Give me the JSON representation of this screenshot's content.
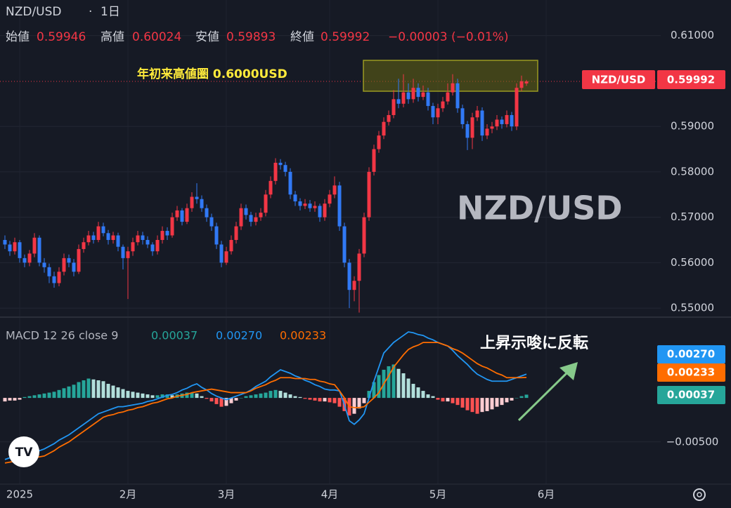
{
  "header": {
    "symbol": "NZD/USD",
    "interval": "1日",
    "open_label": "始値",
    "high_label": "高値",
    "low_label": "安値",
    "close_label": "終値",
    "change": "−0.00003 (−0.01%)"
  },
  "chart_data": [
    {
      "type": "candlestick",
      "title": "NZD/USD",
      "annotation": "年初来高値圏 0.6000USD",
      "price_tag": "NZD/USD",
      "up_color": "#f23645",
      "down_color": "#3179f5",
      "grid": true,
      "ylim": [
        0.54862,
        0.61784
      ],
      "yticks": [
        {
          "value": 0.61,
          "label": "0.61000"
        },
        {
          "value": 0.59,
          "label": "0.59000"
        },
        {
          "value": 0.58,
          "label": "0.58000"
        },
        {
          "value": 0.57,
          "label": "0.57000"
        },
        {
          "value": 0.56,
          "label": "0.56000"
        },
        {
          "value": 0.55,
          "label": "0.55000"
        }
      ],
      "categories": [
        null,
        null,
        null,
        "2025",
        null,
        null,
        null,
        null,
        null,
        null,
        null,
        null,
        null,
        null,
        null,
        null,
        null,
        null,
        null,
        null,
        null,
        null,
        null,
        null,
        null,
        "2月",
        null,
        null,
        null,
        null,
        null,
        null,
        null,
        null,
        null,
        null,
        null,
        null,
        null,
        null,
        null,
        null,
        null,
        null,
        null,
        "3月",
        null,
        null,
        null,
        null,
        null,
        null,
        null,
        null,
        null,
        null,
        null,
        null,
        null,
        null,
        null,
        null,
        null,
        null,
        null,
        null,
        "4月",
        null,
        null,
        null,
        null,
        null,
        null,
        null,
        null,
        null,
        null,
        null,
        null,
        null,
        null,
        null,
        null,
        null,
        null,
        null,
        null,
        null,
        "5月",
        null,
        null,
        null,
        null,
        null,
        null,
        null,
        null,
        null,
        null,
        null,
        null,
        null,
        null,
        null,
        null,
        null,
        null,
        null,
        null,
        null,
        "6月"
      ],
      "ohlc": [
        [
          0.565,
          0.566,
          0.563,
          0.564
        ],
        [
          0.564,
          0.5648,
          0.5615,
          0.5625
        ],
        [
          0.5625,
          0.5655,
          0.5618,
          0.5645
        ],
        [
          0.5645,
          0.565,
          0.56,
          0.561
        ],
        [
          0.561,
          0.5618,
          0.559,
          0.56
        ],
        [
          0.56,
          0.5628,
          0.5592,
          0.562
        ],
        [
          0.562,
          0.5665,
          0.5612,
          0.5655
        ],
        [
          0.5655,
          0.566,
          0.5592,
          0.56
        ],
        [
          0.56,
          0.561,
          0.5578,
          0.559
        ],
        [
          0.559,
          0.5598,
          0.5555,
          0.557
        ],
        [
          0.557,
          0.558,
          0.5545,
          0.5555
        ],
        [
          0.5555,
          0.559,
          0.5548,
          0.558
        ],
        [
          0.558,
          0.562,
          0.5572,
          0.561
        ],
        [
          0.561,
          0.5618,
          0.559,
          0.56
        ],
        [
          0.56,
          0.5608,
          0.557,
          0.558
        ],
        [
          0.558,
          0.564,
          0.5575,
          0.563
        ],
        [
          0.563,
          0.5655,
          0.5622,
          0.5645
        ],
        [
          0.5645,
          0.567,
          0.5638,
          0.566
        ],
        [
          0.566,
          0.5668,
          0.5642,
          0.565
        ],
        [
          0.565,
          0.569,
          0.5645,
          0.568
        ],
        [
          0.568,
          0.5688,
          0.5658,
          0.5665
        ],
        [
          0.5665,
          0.5672,
          0.564,
          0.565
        ],
        [
          0.565,
          0.5668,
          0.5642,
          0.566
        ],
        [
          0.566,
          0.5666,
          0.5625,
          0.5635
        ],
        [
          0.5635,
          0.564,
          0.5585,
          0.561
        ],
        [
          0.561,
          0.5635,
          0.552,
          0.5625
        ],
        [
          0.5625,
          0.5655,
          0.5615,
          0.5645
        ],
        [
          0.5645,
          0.567,
          0.5638,
          0.566
        ],
        [
          0.566,
          0.5668,
          0.564,
          0.565
        ],
        [
          0.565,
          0.5658,
          0.5632,
          0.564
        ],
        [
          0.564,
          0.5645,
          0.5615,
          0.5625
        ],
        [
          0.5625,
          0.566,
          0.5618,
          0.565
        ],
        [
          0.565,
          0.568,
          0.5642,
          0.567
        ],
        [
          0.567,
          0.5678,
          0.565,
          0.566
        ],
        [
          0.566,
          0.571,
          0.5655,
          0.57
        ],
        [
          0.57,
          0.5725,
          0.5692,
          0.5715
        ],
        [
          0.5715,
          0.572,
          0.5682,
          0.569
        ],
        [
          0.569,
          0.573,
          0.5685,
          0.572
        ],
        [
          0.572,
          0.5755,
          0.5712,
          0.5745
        ],
        [
          0.5745,
          0.5775,
          0.573,
          0.574
        ],
        [
          0.574,
          0.5748,
          0.5712,
          0.572
        ],
        [
          0.572,
          0.5728,
          0.569,
          0.57
        ],
        [
          0.57,
          0.5708,
          0.567,
          0.568
        ],
        [
          0.568,
          0.5688,
          0.563,
          0.564
        ],
        [
          0.564,
          0.5648,
          0.559,
          0.56
        ],
        [
          0.56,
          0.5635,
          0.5595,
          0.5625
        ],
        [
          0.5625,
          0.566,
          0.5618,
          0.565
        ],
        [
          0.565,
          0.569,
          0.5642,
          0.568
        ],
        [
          0.568,
          0.573,
          0.5672,
          0.572
        ],
        [
          0.572,
          0.5728,
          0.5695,
          0.5705
        ],
        [
          0.5705,
          0.5712,
          0.568,
          0.569
        ],
        [
          0.569,
          0.571,
          0.5682,
          0.57
        ],
        [
          0.57,
          0.572,
          0.5692,
          0.571
        ],
        [
          0.571,
          0.576,
          0.5702,
          0.575
        ],
        [
          0.575,
          0.579,
          0.5742,
          0.578
        ],
        [
          0.578,
          0.583,
          0.5772,
          0.582
        ],
        [
          0.582,
          0.5828,
          0.5805,
          0.5815
        ],
        [
          0.5815,
          0.5822,
          0.579,
          0.58
        ],
        [
          0.58,
          0.5808,
          0.574,
          0.575
        ],
        [
          0.575,
          0.5758,
          0.5725,
          0.5735
        ],
        [
          0.5735,
          0.5742,
          0.5715,
          0.5725
        ],
        [
          0.5725,
          0.574,
          0.5718,
          0.573
        ],
        [
          0.573,
          0.5738,
          0.5712,
          0.572
        ],
        [
          0.572,
          0.5735,
          0.5712,
          0.5725
        ],
        [
          0.5725,
          0.573,
          0.569,
          0.57
        ],
        [
          0.57,
          0.574,
          0.5692,
          0.573
        ],
        [
          0.573,
          0.576,
          0.5722,
          0.575
        ],
        [
          0.575,
          0.579,
          0.5742,
          0.577
        ],
        [
          0.577,
          0.5778,
          0.567,
          0.568
        ],
        [
          0.568,
          0.5688,
          0.559,
          0.56
        ],
        [
          0.56,
          0.5608,
          0.55,
          0.554
        ],
        [
          0.554,
          0.557,
          0.5515,
          0.556
        ],
        [
          0.556,
          0.563,
          0.549,
          0.562
        ],
        [
          0.562,
          0.571,
          0.5612,
          0.57
        ],
        [
          0.57,
          0.581,
          0.5692,
          0.58
        ],
        [
          0.58,
          0.586,
          0.5792,
          0.585
        ],
        [
          0.585,
          0.589,
          0.5842,
          0.588
        ],
        [
          0.588,
          0.592,
          0.5872,
          0.591
        ],
        [
          0.591,
          0.5935,
          0.5902,
          0.5925
        ],
        [
          0.5925,
          0.598,
          0.5918,
          0.596
        ],
        [
          0.596,
          0.6005,
          0.594,
          0.595
        ],
        [
          0.595,
          0.6015,
          0.5942,
          0.5975
        ],
        [
          0.5975,
          0.5995,
          0.595,
          0.596
        ],
        [
          0.596,
          0.6005,
          0.5952,
          0.5985
        ],
        [
          0.5985,
          0.5995,
          0.5955,
          0.5965
        ],
        [
          0.5965,
          0.599,
          0.5958,
          0.5975
        ],
        [
          0.5975,
          0.5985,
          0.5935,
          0.5945
        ],
        [
          0.5945,
          0.5952,
          0.5905,
          0.592
        ],
        [
          0.592,
          0.595,
          0.5905,
          0.594
        ],
        [
          0.594,
          0.5965,
          0.5932,
          0.5955
        ],
        [
          0.5955,
          0.5995,
          0.5948,
          0.5975
        ],
        [
          0.5975,
          0.6015,
          0.5968,
          0.5995
        ],
        [
          0.5995,
          0.6005,
          0.593,
          0.594
        ],
        [
          0.594,
          0.5948,
          0.5895,
          0.5905
        ],
        [
          0.5905,
          0.5912,
          0.5848,
          0.5875
        ],
        [
          0.5875,
          0.593,
          0.585,
          0.592
        ],
        [
          0.592,
          0.5945,
          0.5912,
          0.5935
        ],
        [
          0.5935,
          0.5942,
          0.5868,
          0.588
        ],
        [
          0.588,
          0.5905,
          0.5872,
          0.5895
        ],
        [
          0.5895,
          0.591,
          0.5885,
          0.59
        ],
        [
          0.59,
          0.5925,
          0.5892,
          0.5915
        ],
        [
          0.5915,
          0.5922,
          0.5895,
          0.5905
        ],
        [
          0.5905,
          0.5935,
          0.5898,
          0.5925
        ],
        [
          0.5925,
          0.5932,
          0.589,
          0.59
        ],
        [
          0.59,
          0.5995,
          0.5892,
          0.5985
        ],
        [
          0.5985,
          0.6012,
          0.5978,
          0.59995
        ],
        [
          0.59946,
          0.60024,
          0.59893,
          0.59992
        ],
        null,
        null,
        null,
        null
      ]
    },
    {
      "type": "macd",
      "title": "MACD 12 26 close 9",
      "annotation": "上昇示唆に反転",
      "ylim": [
        -0.0098,
        0.0087
      ],
      "yticks": [
        {
          "value": -0.005,
          "label": "−0.00500"
        }
      ],
      "macd": {
        "color": "#2196f3",
        "last_label": "0.00270",
        "values": [
          -0.007,
          -0.0068,
          -0.0067,
          -0.0065,
          -0.0064,
          -0.0063,
          -0.0061,
          -0.006,
          -0.0058,
          -0.0055,
          -0.0052,
          -0.0048,
          -0.0045,
          -0.0042,
          -0.0038,
          -0.0034,
          -0.003,
          -0.0026,
          -0.0022,
          -0.0018,
          -0.0016,
          -0.0014,
          -0.0012,
          -0.001,
          -0.001,
          -0.0009,
          -0.0008,
          -0.0007,
          -0.0006,
          -0.0004,
          -0.0003,
          -0.0001,
          0.0001,
          0.0003,
          0.0004,
          0.0006,
          0.0009,
          0.0011,
          0.0014,
          0.0016,
          0.0012,
          0.0009,
          0.0005,
          0.0002,
          0,
          -0.0002,
          0,
          0.0002,
          0.0004,
          0.0006,
          0.0009,
          0.0013,
          0.0016,
          0.0019,
          0.0024,
          0.0028,
          0.0032,
          0.003,
          0.0028,
          0.0025,
          0.0023,
          0.002,
          0.0018,
          0.0015,
          0.0013,
          0.001,
          0.0009,
          0.0009,
          0.0008,
          -0.0008,
          -0.0026,
          -0.003,
          -0.0025,
          -0.0018,
          0,
          0.0019,
          0.0035,
          0.0051,
          0.0057,
          0.0063,
          0.0067,
          0.0071,
          0.0075,
          0.0074,
          0.0072,
          0.0071,
          0.0068,
          0.0066,
          0.0063,
          0.0061,
          0.0059,
          0.0054,
          0.0048,
          0.0043,
          0.0038,
          0.0032,
          0.0027,
          0.0024,
          0.0021,
          0.0019,
          0.0019,
          0.0019,
          0.0019,
          0.0021,
          0.0023,
          0.0025,
          0.0027,
          null,
          null,
          null,
          null
        ]
      },
      "signal": {
        "color": "#ff6d00",
        "values": [
          -0.0074,
          -0.0073,
          -0.0072,
          -0.0071,
          -0.007,
          -0.0069,
          -0.0068,
          -0.0067,
          -0.0066,
          -0.0063,
          -0.006,
          -0.0056,
          -0.0053,
          -0.005,
          -0.0046,
          -0.0042,
          -0.0038,
          -0.0034,
          -0.003,
          -0.0026,
          -0.0022,
          -0.002,
          -0.0019,
          -0.0017,
          -0.0016,
          -0.0014,
          -0.0013,
          -0.0011,
          -0.001,
          -0.0008,
          -0.0006,
          -0.0005,
          -0.0003,
          -0.0001,
          0,
          0.0002,
          0.0003,
          0.0004,
          0.0006,
          0.0007,
          0.0008,
          0.0009,
          0.001,
          0.0009,
          0.0008,
          0.0007,
          0.0006,
          0.0006,
          0.0006,
          0.0006,
          0.0008,
          0.0011,
          0.0013,
          0.0015,
          0.0018,
          0.002,
          0.0023,
          0.0023,
          0.0023,
          0.0022,
          0.0022,
          0.0022,
          0.0021,
          0.0021,
          0.0019,
          0.0018,
          0.0016,
          0.0015,
          0.0008,
          0,
          -0.001,
          -0.0011,
          -0.0011,
          -0.001,
          -0.0005,
          0,
          0.0006,
          0.0016,
          0.0025,
          0.0035,
          0.0042,
          0.0049,
          0.0055,
          0.0058,
          0.006,
          0.0063,
          0.0063,
          0.0063,
          0.0063,
          0.0061,
          0.0059,
          0.0056,
          0.0054,
          0.0051,
          0.0047,
          0.0043,
          0.0039,
          0.0036,
          0.0034,
          0.0031,
          0.0028,
          0.0026,
          0.0023,
          0.0023,
          0.0023,
          0.0023,
          0.00233,
          null,
          null,
          null,
          null
        ]
      },
      "histogram": {
        "colors": {
          "pos_rising": "#26a69a",
          "pos_falling": "#b2dfdb",
          "neg_falling": "#ff5252",
          "neg_rising": "#ffcdd2"
        },
        "values": [
          -0.0004,
          -0.0003,
          -0.0003,
          -0.0002,
          0.0001,
          0.0002,
          0.0003,
          0.0004,
          0.0005,
          0.0006,
          0.0007,
          0.0009,
          0.0011,
          0.0013,
          0.0015,
          0.0018,
          0.002,
          0.0022,
          0.0021,
          0.002,
          0.0019,
          0.0016,
          0.0014,
          0.0012,
          0.001,
          0.0008,
          0.0007,
          0.0006,
          0.0005,
          0.0004,
          0.0003,
          0.0003,
          0.0004,
          0.0004,
          0.0003,
          0.0004,
          0.0005,
          0.0006,
          0.0006,
          0.0005,
          0.0002,
          -0.0001,
          -0.0004,
          -0.0007,
          -0.001,
          -0.0009,
          -0.0006,
          -0.0003,
          0,
          0.0002,
          0.0003,
          0.0004,
          0.0005,
          0.0006,
          0.0008,
          0.0009,
          0.0008,
          0.0006,
          0.0004,
          0.0002,
          0.0001,
          -0.0001,
          -0.0002,
          -0.0003,
          -0.0004,
          -0.0004,
          -0.0005,
          -0.0006,
          -0.001,
          -0.0015,
          -0.002,
          -0.0018,
          -0.0012,
          -0.0006,
          0.0008,
          0.0018,
          0.0026,
          0.0032,
          0.0036,
          0.0038,
          0.0033,
          0.0028,
          0.0022,
          0.0016,
          0.0012,
          0.0008,
          0.0004,
          0.0002,
          -0.0002,
          -0.0004,
          -0.0004,
          -0.0006,
          -0.0008,
          -0.0011,
          -0.0014,
          -0.0016,
          -0.0018,
          -0.0016,
          -0.0015,
          -0.0013,
          -0.001,
          -0.0008,
          -0.0005,
          -0.0003,
          0,
          0.0002,
          0.00037,
          null,
          null,
          null,
          null
        ]
      }
    }
  ]
}
